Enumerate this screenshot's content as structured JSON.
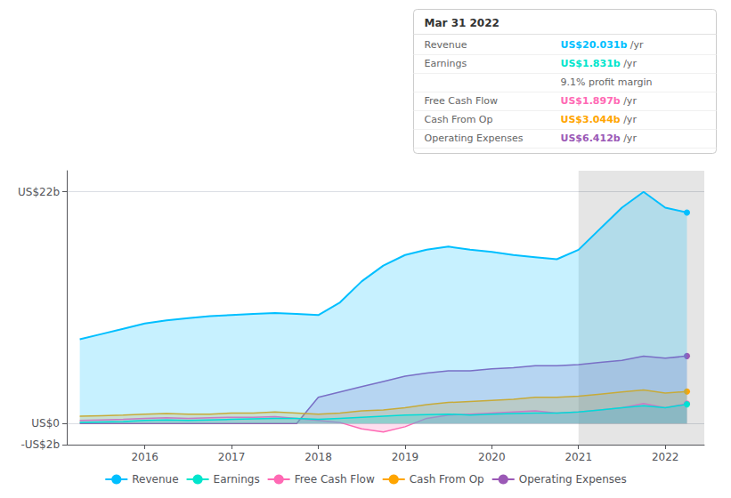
{
  "chart_data": {
    "type": "line",
    "x": [
      2015.25,
      2015.5,
      2015.75,
      2016.0,
      2016.25,
      2016.5,
      2016.75,
      2017.0,
      2017.25,
      2017.5,
      2017.75,
      2018.0,
      2018.25,
      2018.5,
      2018.75,
      2019.0,
      2019.25,
      2019.5,
      2019.75,
      2020.0,
      2020.25,
      2020.5,
      2020.75,
      2021.0,
      2021.25,
      2021.5,
      2021.75,
      2022.0,
      2022.25
    ],
    "series": [
      {
        "name": "Revenue",
        "color": "#00bfff",
        "values": [
          8.0,
          8.5,
          9.0,
          9.5,
          9.8,
          10.0,
          10.2,
          10.3,
          10.4,
          10.5,
          10.4,
          10.3,
          11.5,
          13.5,
          15.0,
          16.0,
          16.5,
          16.8,
          16.5,
          16.3,
          16.0,
          15.8,
          15.6,
          16.5,
          18.5,
          20.5,
          22.0,
          20.5,
          20.031
        ]
      },
      {
        "name": "Earnings",
        "color": "#00e5cc",
        "values": [
          0.1,
          0.15,
          0.2,
          0.3,
          0.35,
          0.3,
          0.35,
          0.4,
          0.45,
          0.5,
          0.5,
          0.4,
          0.5,
          0.6,
          0.7,
          0.8,
          0.85,
          0.9,
          0.8,
          0.9,
          0.95,
          1.0,
          1.0,
          1.1,
          1.3,
          1.5,
          1.7,
          1.5,
          1.831
        ]
      },
      {
        "name": "Free Cash Flow",
        "color": "#ff69b4",
        "values": [
          0.3,
          0.35,
          0.4,
          0.5,
          0.55,
          0.5,
          0.55,
          0.6,
          0.6,
          0.65,
          0.5,
          0.3,
          0.1,
          -0.5,
          -0.8,
          -0.3,
          0.5,
          0.8,
          0.9,
          1.0,
          1.1,
          1.2,
          1.0,
          1.1,
          1.3,
          1.5,
          1.9,
          1.5,
          1.897
        ]
      },
      {
        "name": "Cash From Op",
        "color": "#ffa500",
        "values": [
          0.7,
          0.75,
          0.8,
          0.9,
          0.95,
          0.9,
          0.9,
          1.0,
          1.0,
          1.1,
          1.0,
          0.9,
          1.0,
          1.2,
          1.3,
          1.5,
          1.8,
          2.0,
          2.1,
          2.2,
          2.3,
          2.5,
          2.5,
          2.6,
          2.8,
          3.0,
          3.2,
          2.9,
          3.044
        ]
      },
      {
        "name": "Operating Expenses",
        "color": "#9b59b6",
        "values": [
          0.0,
          0.0,
          0.0,
          0.0,
          0.0,
          0.0,
          0.0,
          0.0,
          0.0,
          0.0,
          0.0,
          2.5,
          3.0,
          3.5,
          4.0,
          4.5,
          4.8,
          5.0,
          5.0,
          5.2,
          5.3,
          5.5,
          5.5,
          5.6,
          5.8,
          6.0,
          6.4,
          6.2,
          6.412
        ]
      }
    ],
    "xlim": [
      2015.1,
      2022.45
    ],
    "xticks": [
      2016,
      2017,
      2018,
      2019,
      2020,
      2021,
      2022
    ],
    "ylim": [
      -2,
      24
    ],
    "yticks": [
      {
        "value": -2,
        "label": "-US$2b"
      },
      {
        "value": 0,
        "label": "US$0"
      },
      {
        "value": 22,
        "label": "US$22b"
      }
    ],
    "grid": true,
    "legend": "bottom",
    "highlight_region": [
      2021.0,
      2022.45
    ],
    "annotation": {
      "title": "Mar 31 2022",
      "rows": [
        {
          "label": "Revenue",
          "value": "US$20.031b",
          "color": "#00bfff",
          "unit": " /yr"
        },
        {
          "label": "Earnings",
          "value": "US$1.831b",
          "color": "#00e5cc",
          "unit": " /yr",
          "extra": "9.1% profit margin"
        },
        {
          "label": "Free Cash Flow",
          "value": "US$1.897b",
          "color": "#ff69b4",
          "unit": " /yr"
        },
        {
          "label": "Cash From Op",
          "value": "US$3.044b",
          "color": "#ffa500",
          "unit": " /yr"
        },
        {
          "label": "Operating Expenses",
          "value": "US$6.412b",
          "color": "#9b59b6",
          "unit": " /yr"
        }
      ]
    }
  }
}
